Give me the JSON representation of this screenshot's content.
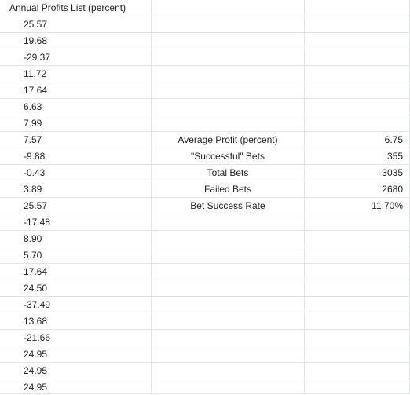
{
  "sheet": {
    "header": "Annual Profits List (percent)",
    "profits": [
      "25.57",
      "19.68",
      "-29.37",
      "11.72",
      "17.64",
      "6.63",
      "7.99",
      "7.57",
      "-9.88",
      "-0.43",
      "3.89",
      "25.57",
      "-17.48",
      "8.90",
      "5.70",
      "17.64",
      "24.50",
      "-37.49",
      "13.68",
      "-21.66",
      "24.95",
      "24.95",
      "24.95"
    ],
    "stats": [
      {
        "label": "Average Profit (percent)",
        "value": "6.75"
      },
      {
        "label": "\"Successful\" Bets",
        "value": "355"
      },
      {
        "label": "Total Bets",
        "value": "3035"
      },
      {
        "label": "Failed Bets",
        "value": "2680"
      },
      {
        "label": "Bet Success Rate",
        "value": "11.70%"
      }
    ]
  }
}
